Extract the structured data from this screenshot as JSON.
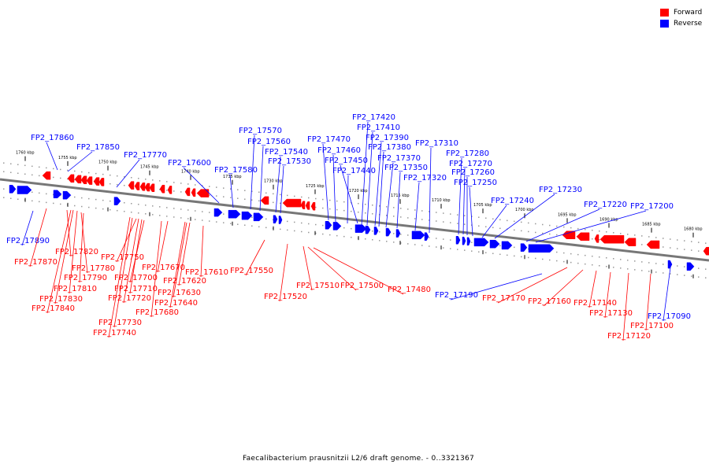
{
  "legend": {
    "forward_label": "Forward",
    "reverse_label": "Reverse",
    "forward_color": "#ff0000",
    "reverse_color": "#0000ff"
  },
  "caption": "Faecalibacterium prausnitzii L2/6 draft genome. - 0..3321367",
  "scale_labels": [
    "1760 kbp",
    "1755 kbp",
    "1750 kbp",
    "1745 kbp",
    "1740 kbp",
    "1735 kbp",
    "1730 kbp",
    "1725 kbp",
    "1720 kbp",
    "1715 kbp",
    "1710 kbp",
    "1705 kbp",
    "1700 kbp",
    "1695 kbp",
    "1690 kbp",
    "1685 kbp",
    "1680 kbp"
  ],
  "genes": [
    {
      "label": "FP2_17860",
      "strand": "reverse"
    },
    {
      "label": "FP2_17850",
      "strand": "reverse"
    },
    {
      "label": "FP2_17770",
      "strand": "reverse"
    },
    {
      "label": "FP2_17600",
      "strand": "reverse"
    },
    {
      "label": "FP2_17580",
      "strand": "reverse"
    },
    {
      "label": "FP2_17570",
      "strand": "reverse"
    },
    {
      "label": "FP2_17560",
      "strand": "reverse"
    },
    {
      "label": "FP2_17540",
      "strand": "reverse"
    },
    {
      "label": "FP2_17530",
      "strand": "reverse"
    },
    {
      "label": "FP2_17470",
      "strand": "reverse"
    },
    {
      "label": "FP2_17460",
      "strand": "reverse"
    },
    {
      "label": "FP2_17450",
      "strand": "reverse"
    },
    {
      "label": "FP2_17440",
      "strand": "reverse"
    },
    {
      "label": "FP2_17420",
      "strand": "reverse"
    },
    {
      "label": "FP2_17410",
      "strand": "reverse"
    },
    {
      "label": "FP2_17390",
      "strand": "reverse"
    },
    {
      "label": "FP2_17380",
      "strand": "reverse"
    },
    {
      "label": "FP2_17370",
      "strand": "reverse"
    },
    {
      "label": "FP2_17350",
      "strand": "reverse"
    },
    {
      "label": "FP2_17320",
      "strand": "reverse"
    },
    {
      "label": "FP2_17310",
      "strand": "reverse"
    },
    {
      "label": "FP2_17280",
      "strand": "reverse"
    },
    {
      "label": "FP2_17270",
      "strand": "reverse"
    },
    {
      "label": "FP2_17260",
      "strand": "reverse"
    },
    {
      "label": "FP2_17250",
      "strand": "reverse"
    },
    {
      "label": "FP2_17240",
      "strand": "reverse"
    },
    {
      "label": "FP2_17230",
      "strand": "reverse"
    },
    {
      "label": "FP2_17220",
      "strand": "reverse"
    },
    {
      "label": "FP2_17200",
      "strand": "reverse"
    },
    {
      "label": "FP2_17890",
      "strand": "reverse"
    },
    {
      "label": "FP2_17190",
      "strand": "reverse"
    },
    {
      "label": "FP2_17090",
      "strand": "reverse"
    },
    {
      "label": "FP2_17870",
      "strand": "forward"
    },
    {
      "label": "FP2_17820",
      "strand": "forward"
    },
    {
      "label": "FP2_17780",
      "strand": "forward"
    },
    {
      "label": "FP2_17790",
      "strand": "forward"
    },
    {
      "label": "FP2_17810",
      "strand": "forward"
    },
    {
      "label": "FP2_17830",
      "strand": "forward"
    },
    {
      "label": "FP2_17840",
      "strand": "forward"
    },
    {
      "label": "FP2_17750",
      "strand": "forward"
    },
    {
      "label": "FP2_17700",
      "strand": "forward"
    },
    {
      "label": "FP2_17710",
      "strand": "forward"
    },
    {
      "label": "FP2_17720",
      "strand": "forward"
    },
    {
      "label": "FP2_17730",
      "strand": "forward"
    },
    {
      "label": "FP2_17740",
      "strand": "forward"
    },
    {
      "label": "FP2_17670",
      "strand": "forward"
    },
    {
      "label": "FP2_17620",
      "strand": "forward"
    },
    {
      "label": "FP2_17630",
      "strand": "forward"
    },
    {
      "label": "FP2_17640",
      "strand": "forward"
    },
    {
      "label": "FP2_17680",
      "strand": "forward"
    },
    {
      "label": "FP2_17610",
      "strand": "forward"
    },
    {
      "label": "FP2_17550",
      "strand": "forward"
    },
    {
      "label": "FP2_17520",
      "strand": "forward"
    },
    {
      "label": "FP2_17510",
      "strand": "forward"
    },
    {
      "label": "FP2_17500",
      "strand": "forward"
    },
    {
      "label": "FP2_17480",
      "strand": "forward"
    },
    {
      "label": "FP2_17170",
      "strand": "forward"
    },
    {
      "label": "FP2_17160",
      "strand": "forward"
    },
    {
      "label": "FP2_17140",
      "strand": "forward"
    },
    {
      "label": "FP2_17130",
      "strand": "forward"
    },
    {
      "label": "FP2_17120",
      "strand": "forward"
    },
    {
      "label": "FP2_17100",
      "strand": "forward"
    }
  ]
}
